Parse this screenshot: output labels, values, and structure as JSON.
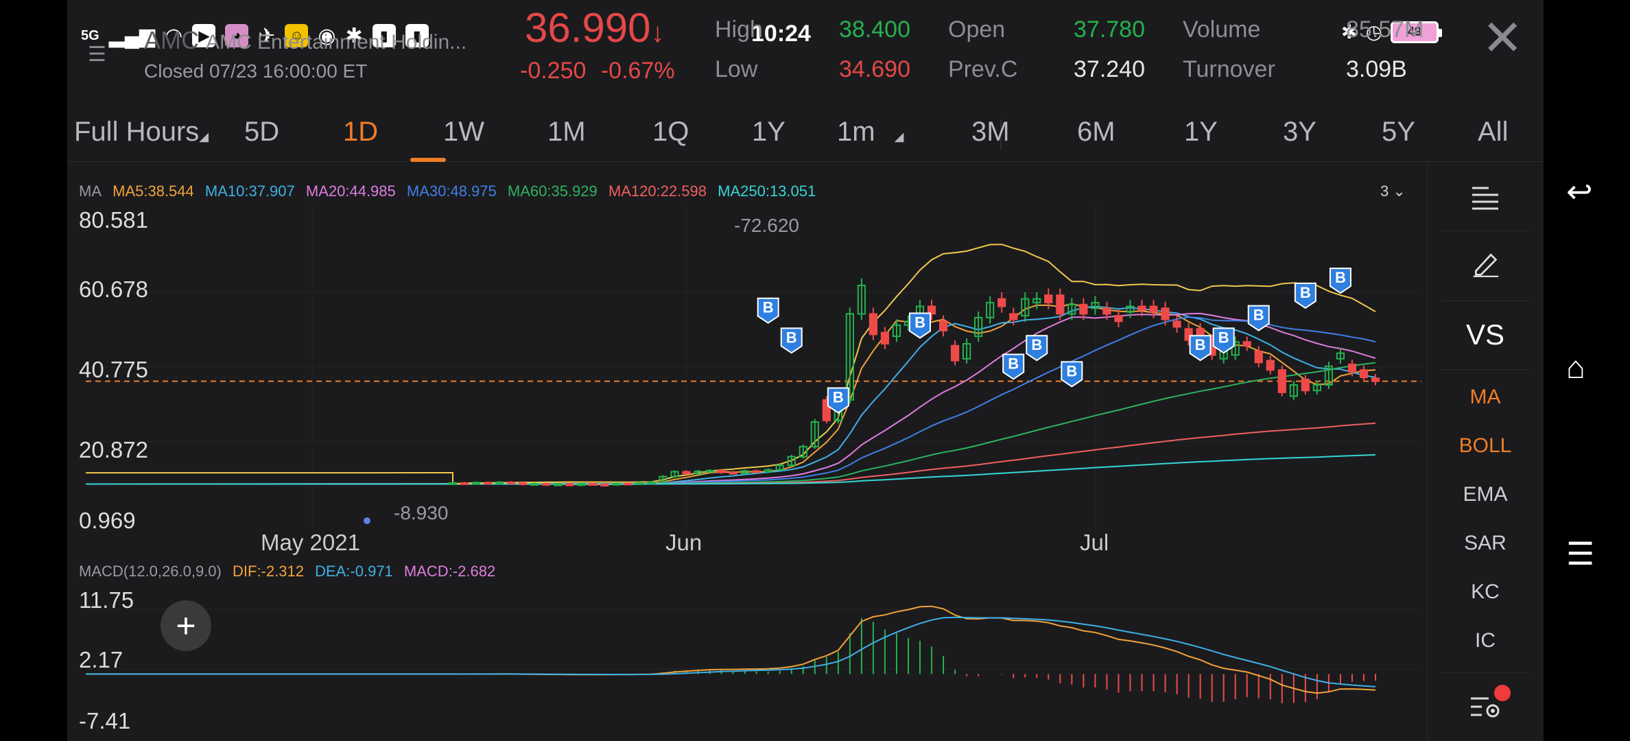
{
  "status": {
    "network": "5G",
    "time": "10:24",
    "battery": "49"
  },
  "header": {
    "symbol": "AMC",
    "name": "AMC Entertainment Holdin...",
    "closed": "Closed  07/23 16:00:00 ET",
    "price": "36.990",
    "price_change": "-0.250",
    "price_change_pct": "-0.67%",
    "stats": {
      "high_label": "High",
      "high": "38.400",
      "low_label": "Low",
      "low": "34.690",
      "open_label": "Open",
      "open": "37.780",
      "prev_close_label": "Prev.C",
      "prev_close": "37.240",
      "volume_label": "Volume",
      "volume": "85.57M",
      "turnover_label": "Turnover",
      "turnover": "3.09B"
    }
  },
  "periods": [
    {
      "label": "Full Hours",
      "active": false
    },
    {
      "label": "5D",
      "active": false
    },
    {
      "label": "1D",
      "active": true
    },
    {
      "label": "1W",
      "active": false
    },
    {
      "label": "1M",
      "active": false
    },
    {
      "label": "1Q",
      "active": false
    },
    {
      "label": "1Y",
      "active": false
    },
    {
      "label": "1m",
      "active": false
    },
    {
      "label": "3M",
      "active": false
    },
    {
      "label": "6M",
      "active": false
    },
    {
      "label": "1Y",
      "active": false
    },
    {
      "label": "3Y",
      "active": false
    },
    {
      "label": "5Y",
      "active": false
    },
    {
      "label": "All",
      "active": false
    }
  ],
  "ma_legend": {
    "prefix": "MA",
    "items": [
      {
        "label": "MA5:38.544",
        "color": "#f2a33a"
      },
      {
        "label": "MA10:37.907",
        "color": "#3fb0e6"
      },
      {
        "label": "MA20:44.985",
        "color": "#e07ce0"
      },
      {
        "label": "MA30:48.975",
        "color": "#3f7fe6"
      },
      {
        "label": "MA60:35.929",
        "color": "#2db35f"
      },
      {
        "label": "MA120:22.598",
        "color": "#ef6060"
      },
      {
        "label": "MA250:13.051",
        "color": "#36d6d6"
      }
    ],
    "count": "3"
  },
  "price_axis": [
    "80.581",
    "60.678",
    "40.775",
    "20.872",
    "0.969"
  ],
  "date_axis": [
    "May 2021",
    "Jun",
    "Jul"
  ],
  "annotations": {
    "high": "72.620",
    "low": "8.930",
    "buy_marker": "B"
  },
  "macd_legend": {
    "prefix": "MACD(12.0,26.0,9.0)",
    "dif": "DIF:-2.312",
    "dea": "DEA:-0.971",
    "macd": "MACD:-2.682",
    "dif_color": "#f2a33a",
    "dea_color": "#3fb0e6",
    "macd_color": "#e07ce0"
  },
  "macd_axis": [
    "11.75",
    "2.17",
    "-7.41"
  ],
  "side_panel": {
    "vs": "VS",
    "indicators": [
      {
        "label": "MA",
        "active": true
      },
      {
        "label": "BOLL",
        "active": true
      },
      {
        "label": "EMA",
        "active": false
      },
      {
        "label": "SAR",
        "active": false
      },
      {
        "label": "KC",
        "active": false
      },
      {
        "label": "IC",
        "active": false
      }
    ]
  },
  "chart_data": {
    "type": "candlestick",
    "title": "",
    "y_range": [
      0.969,
      80.581
    ],
    "current_price": 36.99,
    "x_ticks": [
      "May 2021",
      "Jun",
      "Jul"
    ],
    "candles_approx": [
      {
        "o": 9.5,
        "c": 9.8
      },
      {
        "o": 9.8,
        "c": 9.6
      },
      {
        "o": 9.6,
        "c": 9.9
      },
      {
        "o": 9.9,
        "c": 9.7
      },
      {
        "o": 9.7,
        "c": 10.0
      },
      {
        "o": 10.0,
        "c": 9.8
      },
      {
        "o": 9.8,
        "c": 9.4
      },
      {
        "o": 9.4,
        "c": 9.6
      },
      {
        "o": 9.6,
        "c": 9.3
      },
      {
        "o": 9.3,
        "c": 9.5
      },
      {
        "o": 9.5,
        "c": 9.2
      },
      {
        "o": 9.2,
        "c": 9.6
      },
      {
        "o": 9.6,
        "c": 9.4
      },
      {
        "o": 9.4,
        "c": 9.3
      },
      {
        "o": 9.3,
        "c": 9.7
      },
      {
        "o": 9.7,
        "c": 9.5
      },
      {
        "o": 9.5,
        "c": 9.8
      },
      {
        "o": 9.8,
        "c": 10.0
      },
      {
        "o": 10.0,
        "c": 11.5
      },
      {
        "o": 11.5,
        "c": 12.8
      },
      {
        "o": 12.8,
        "c": 12.3
      },
      {
        "o": 12.3,
        "c": 12.9
      },
      {
        "o": 12.9,
        "c": 13.1
      },
      {
        "o": 13.1,
        "c": 12.6
      },
      {
        "o": 12.6,
        "c": 12.4
      },
      {
        "o": 12.4,
        "c": 13.0
      },
      {
        "o": 13.0,
        "c": 12.8
      },
      {
        "o": 12.8,
        "c": 13.3
      },
      {
        "o": 13.3,
        "c": 14.5
      },
      {
        "o": 14.5,
        "c": 16.8
      },
      {
        "o": 16.8,
        "c": 19.5
      },
      {
        "o": 19.5,
        "c": 26.1
      },
      {
        "o": 32.0,
        "c": 26.5
      },
      {
        "o": 26.5,
        "c": 32.0
      },
      {
        "o": 32.0,
        "c": 55.0
      },
      {
        "o": 55.0,
        "c": 62.6
      },
      {
        "o": 55.0,
        "c": 49.5
      },
      {
        "o": 50.0,
        "c": 47.0
      },
      {
        "o": 49.0,
        "c": 52.0
      },
      {
        "o": 52.0,
        "c": 53.0
      },
      {
        "o": 55.0,
        "c": 57.0
      },
      {
        "o": 57.0,
        "c": 55.0
      },
      {
        "o": 53.0,
        "c": 50.5
      },
      {
        "o": 46.5,
        "c": 42.5
      },
      {
        "o": 43.0,
        "c": 47.0
      },
      {
        "o": 49.0,
        "c": 54.0
      },
      {
        "o": 54.0,
        "c": 58.0
      },
      {
        "o": 59.0,
        "c": 57.0
      },
      {
        "o": 55.0,
        "c": 53.5
      },
      {
        "o": 54.5,
        "c": 59.0
      },
      {
        "o": 58.0,
        "c": 59.0
      },
      {
        "o": 60.0,
        "c": 58.0
      },
      {
        "o": 60.0,
        "c": 55.0
      },
      {
        "o": 55.0,
        "c": 57.5
      },
      {
        "o": 57.5,
        "c": 55.0
      },
      {
        "o": 56.5,
        "c": 58.0
      },
      {
        "o": 56.5,
        "c": 55.0
      },
      {
        "o": 54.5,
        "c": 53.0
      },
      {
        "o": 55.5,
        "c": 57.0
      },
      {
        "o": 57.0,
        "c": 56.0
      },
      {
        "o": 57.0,
        "c": 55.5
      },
      {
        "o": 56.5,
        "c": 53.5
      },
      {
        "o": 53.0,
        "c": 51.5
      },
      {
        "o": 51.0,
        "c": 48.0
      },
      {
        "o": 51.0,
        "c": 48.5
      },
      {
        "o": 48.0,
        "c": 44.0
      },
      {
        "o": 43.0,
        "c": 45.5
      },
      {
        "o": 44.0,
        "c": 47.5
      },
      {
        "o": 47.5,
        "c": 46.5
      },
      {
        "o": 45.0,
        "c": 42.0
      },
      {
        "o": 42.5,
        "c": 40.0
      },
      {
        "o": 40.0,
        "c": 34.0
      },
      {
        "o": 33.0,
        "c": 36.0
      },
      {
        "o": 37.5,
        "c": 34.5
      },
      {
        "o": 34.5,
        "c": 36.0
      },
      {
        "o": 36.0,
        "c": 41.0
      },
      {
        "o": 43.0,
        "c": 44.5
      },
      {
        "o": 41.5,
        "c": 39.5
      },
      {
        "o": 40.0,
        "c": 38.0
      },
      {
        "o": 37.78,
        "c": 36.99
      }
    ],
    "macd_range": [
      -7.41,
      11.75
    ]
  }
}
